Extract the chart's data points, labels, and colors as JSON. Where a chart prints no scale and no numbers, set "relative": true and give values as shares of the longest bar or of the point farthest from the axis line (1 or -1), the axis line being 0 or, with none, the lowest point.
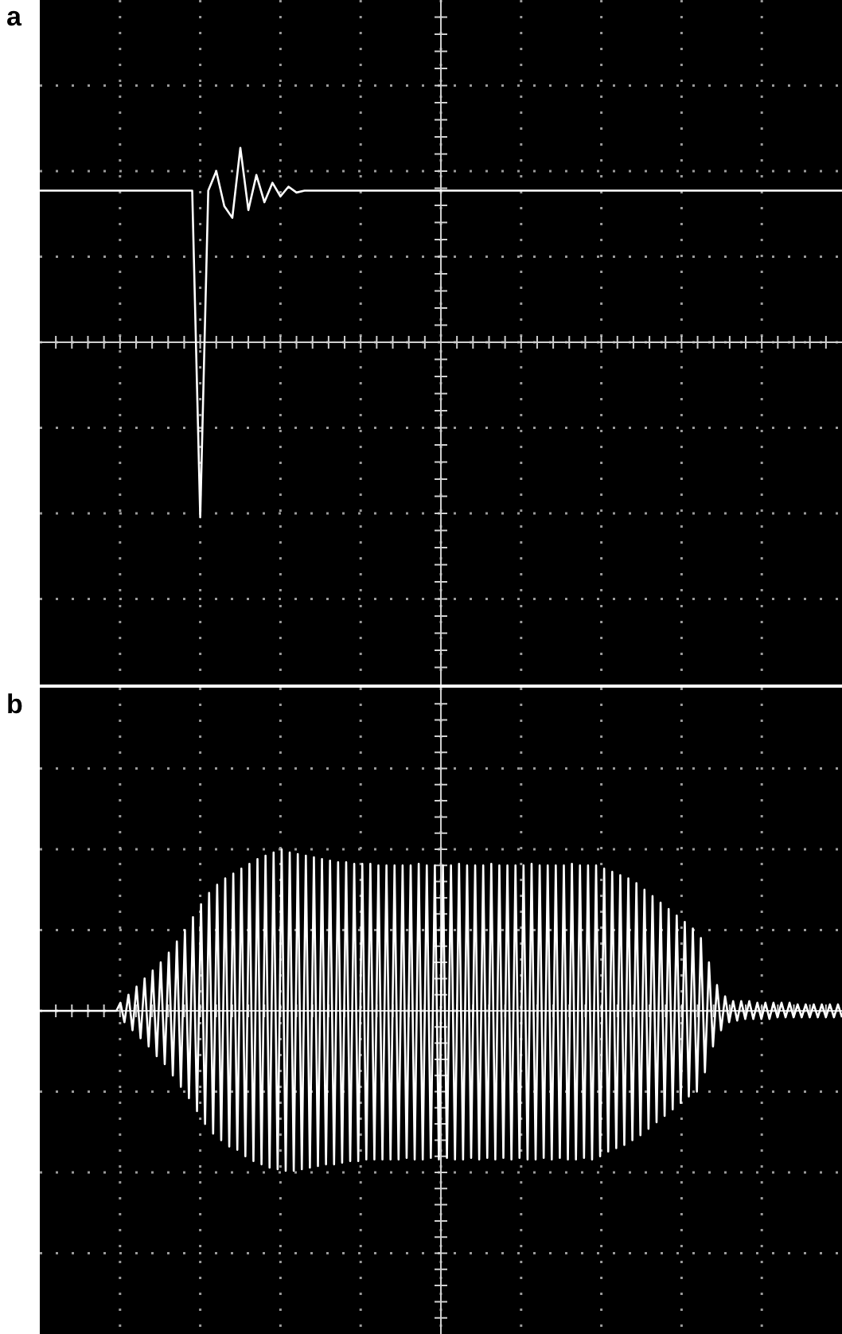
{
  "chart_data": [
    {
      "type": "line",
      "title": "a",
      "relative": true,
      "grid": true,
      "legend": false,
      "marker": "none",
      "categories": [
        null,
        null,
        null,
        null,
        null,
        null,
        null,
        null,
        null,
        null,
        null,
        null,
        null,
        null,
        null,
        null,
        null,
        null,
        null,
        null,
        null,
        null,
        null,
        null,
        null,
        null,
        null,
        null,
        null,
        null,
        null,
        null,
        null,
        null,
        null,
        null,
        null,
        null,
        null,
        null,
        null,
        null,
        null,
        null,
        null,
        null,
        null,
        null,
        null,
        null,
        null,
        null,
        null,
        null,
        null,
        null,
        null,
        null,
        null,
        null,
        null,
        null,
        null,
        null,
        null,
        null,
        null,
        null,
        null,
        null,
        null,
        null,
        null,
        null,
        null,
        null,
        null,
        null,
        null,
        null,
        null,
        null,
        null,
        null,
        null,
        null,
        null,
        null,
        null,
        null,
        null,
        null,
        null,
        null,
        null,
        null,
        null,
        null,
        null,
        null,
        null
      ],
      "series": [
        {
          "color": "#ffffff",
          "values": [
            0.78,
            0.78,
            0.78,
            0.78,
            0.78,
            0.78,
            0.78,
            0.78,
            0.78,
            0.78,
            0.78,
            0.78,
            0.78,
            0.78,
            0.78,
            0.78,
            0.78,
            0.78,
            0.78,
            0.78,
            -0.9,
            0.78,
            0.88,
            0.7,
            0.64,
            1,
            0.68,
            0.86,
            0.72,
            0.82,
            0.75,
            0.8,
            0.77,
            0.78,
            0.78,
            0.78,
            0.78,
            0.78,
            0.78,
            0.78,
            0.78,
            0.78,
            0.78,
            0.78,
            0.78,
            0.78,
            0.78,
            0.78,
            0.78,
            0.78,
            0.78,
            0.78,
            0.78,
            0.78,
            0.78,
            0.78,
            0.78,
            0.78,
            0.78,
            0.78,
            0.78,
            0.78,
            0.78,
            0.78,
            0.78,
            0.78,
            0.78,
            0.78,
            0.78,
            0.78,
            0.78,
            0.78,
            0.78,
            0.78,
            0.78,
            0.78,
            0.78,
            0.78,
            0.78,
            0.78,
            0.78,
            0.78,
            0.78,
            0.78,
            0.78,
            0.78,
            0.78,
            0.78,
            0.78,
            0.78,
            0.78,
            0.78,
            0.78,
            0.78,
            0.78,
            0.78,
            0.78,
            0.78,
            0.78,
            0.78,
            0.78
          ]
        }
      ]
    },
    {
      "type": "line",
      "title": "b",
      "relative": true,
      "grid": true,
      "legend": false,
      "marker": "none",
      "categories": [
        null,
        null,
        null,
        null,
        null,
        null,
        null,
        null,
        null,
        null,
        null,
        null,
        null,
        null,
        null,
        null,
        null,
        null,
        null,
        null,
        null,
        null,
        null,
        null,
        null,
        null,
        null,
        null,
        null,
        null,
        null,
        null,
        null,
        null,
        null,
        null,
        null,
        null,
        null,
        null,
        null,
        null,
        null,
        null,
        null,
        null,
        null,
        null,
        null,
        null,
        null,
        null,
        null,
        null,
        null,
        null,
        null,
        null,
        null,
        null,
        null,
        null,
        null,
        null,
        null,
        null,
        null,
        null,
        null,
        null,
        null,
        null,
        null,
        null,
        null,
        null,
        null,
        null,
        null,
        null,
        null,
        null,
        null,
        null,
        null,
        null,
        null,
        null,
        null,
        null,
        null,
        null,
        null,
        null,
        null,
        null,
        null,
        null,
        null,
        null,
        null,
        null,
        null,
        null,
        null,
        null,
        null,
        null,
        null,
        null,
        null,
        null,
        null,
        null,
        null,
        null,
        null,
        null,
        null,
        null,
        null,
        null,
        null,
        null,
        null,
        null,
        null,
        null,
        null,
        null,
        null,
        null,
        null,
        null,
        null,
        null,
        null,
        null,
        null,
        null,
        null,
        null,
        null,
        null,
        null,
        null,
        null,
        null,
        null,
        null,
        null,
        null,
        null,
        null,
        null,
        null,
        null,
        null,
        null,
        null,
        null,
        null,
        null,
        null,
        null,
        null,
        null,
        null,
        null,
        null,
        null,
        null,
        null,
        null,
        null,
        null,
        null,
        null,
        null,
        null,
        null,
        null,
        null,
        null,
        null,
        null,
        null,
        null,
        null,
        null,
        null,
        null,
        null,
        null,
        null,
        null,
        null,
        null,
        null,
        null
      ],
      "series": [
        {
          "color": "#ffffff",
          "values": [
            0,
            0,
            0,
            0,
            0,
            0,
            0,
            0,
            0,
            0,
            0,
            0,
            0,
            0,
            0,
            0,
            0,
            0,
            0,
            0,
            0.05,
            -0.07,
            0.1,
            -0.12,
            0.15,
            -0.17,
            0.2,
            -0.22,
            0.25,
            -0.28,
            0.3,
            -0.33,
            0.36,
            -0.4,
            0.43,
            -0.47,
            0.5,
            -0.54,
            0.58,
            -0.62,
            0.66,
            -0.7,
            0.73,
            -0.76,
            0.78,
            -0.8,
            0.82,
            -0.84,
            0.85,
            -0.86,
            0.88,
            -0.9,
            0.91,
            -0.93,
            0.94,
            -0.95,
            0.96,
            -0.97,
            0.98,
            -0.98,
            1,
            -0.99,
            0.98,
            -0.99,
            0.97,
            -0.98,
            0.96,
            -0.97,
            0.95,
            -0.96,
            0.94,
            -0.95,
            0.93,
            -0.95,
            0.92,
            -0.94,
            0.92,
            -0.93,
            0.91,
            -0.93,
            0.91,
            -0.92,
            0.91,
            -0.92,
            0.9,
            -0.92,
            0.9,
            -0.92,
            0.9,
            -0.92,
            0.9,
            -0.91,
            0.9,
            -0.92,
            0.91,
            -0.92,
            0.9,
            -0.91,
            0.9,
            -0.92,
            0.9,
            -0.91,
            0.9,
            -0.92,
            0.91,
            -0.92,
            0.9,
            -0.91,
            0.9,
            -0.92,
            0.9,
            -0.91,
            0.91,
            -0.92,
            0.9,
            -0.91,
            0.9,
            -0.92,
            0.9,
            -0.91,
            0.9,
            -0.92,
            0.91,
            -0.92,
            0.9,
            -0.91,
            0.9,
            -0.92,
            0.9,
            -0.91,
            0.9,
            -0.92,
            0.91,
            -0.92,
            0.9,
            -0.91,
            0.9,
            -0.92,
            0.9,
            -0.9,
            0.88,
            -0.87,
            0.86,
            -0.85,
            0.84,
            -0.83,
            0.82,
            -0.8,
            0.79,
            -0.77,
            0.75,
            -0.73,
            0.71,
            -0.69,
            0.67,
            -0.65,
            0.63,
            -0.61,
            0.59,
            -0.57,
            0.55,
            -0.53,
            0.51,
            -0.5,
            0.45,
            -0.38,
            0.3,
            -0.22,
            0.16,
            -0.12,
            0.09,
            -0.07,
            0.06,
            -0.06,
            0.06,
            -0.05,
            0.06,
            -0.05,
            0.05,
            -0.05,
            0.05,
            -0.05,
            0.05,
            -0.04,
            0.05,
            -0.04,
            0.05,
            -0.04,
            0.04,
            -0.04,
            0.04,
            -0.04,
            0.04,
            -0.04,
            0.04,
            -0.04,
            0.04,
            -0.04,
            0.04,
            -0.04
          ]
        }
      ]
    }
  ]
}
